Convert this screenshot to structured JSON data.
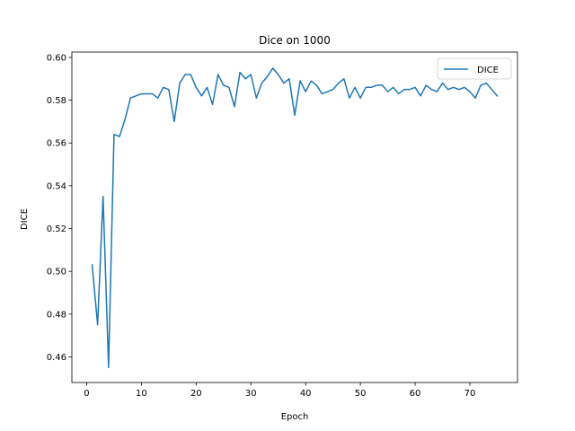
{
  "chart_data": {
    "type": "line",
    "title": "Dice on 1000",
    "xlabel": "Epoch",
    "ylabel": "DICE",
    "xlim": [
      -2.7,
      78.7
    ],
    "ylim": [
      0.448,
      0.6025
    ],
    "xticks": [
      0,
      10,
      20,
      30,
      40,
      50,
      60,
      70
    ],
    "yticks": [
      0.46,
      0.48,
      0.5,
      0.52,
      0.54,
      0.56,
      0.58,
      0.6
    ],
    "grid": false,
    "legend_position": "top-right",
    "series": [
      {
        "name": "DICE",
        "color": "#1f77b4",
        "x": [
          1,
          2,
          3,
          4,
          5,
          6,
          7,
          8,
          9,
          10,
          11,
          12,
          13,
          14,
          15,
          16,
          17,
          18,
          19,
          20,
          21,
          22,
          23,
          24,
          25,
          26,
          27,
          28,
          29,
          30,
          31,
          32,
          33,
          34,
          35,
          36,
          37,
          38,
          39,
          40,
          41,
          42,
          43,
          44,
          45,
          46,
          47,
          48,
          49,
          50,
          51,
          52,
          53,
          54,
          55,
          56,
          57,
          58,
          59,
          60,
          61,
          62,
          63,
          64,
          65,
          66,
          67,
          68,
          69,
          70,
          71,
          72,
          73,
          74,
          75
        ],
        "y": [
          0.503,
          0.475,
          0.535,
          0.455,
          0.564,
          0.563,
          0.571,
          0.581,
          0.582,
          0.583,
          0.583,
          0.583,
          0.581,
          0.586,
          0.585,
          0.57,
          0.588,
          0.592,
          0.592,
          0.586,
          0.582,
          0.586,
          0.578,
          0.592,
          0.587,
          0.586,
          0.577,
          0.593,
          0.59,
          0.592,
          0.581,
          0.588,
          0.591,
          0.595,
          0.592,
          0.588,
          0.59,
          0.573,
          0.589,
          0.584,
          0.589,
          0.587,
          0.583,
          0.584,
          0.585,
          0.588,
          0.59,
          0.581,
          0.586,
          0.581,
          0.586,
          0.586,
          0.587,
          0.587,
          0.584,
          0.586,
          0.583,
          0.585,
          0.585,
          0.586,
          0.582,
          0.587,
          0.585,
          0.584,
          0.588,
          0.585,
          0.586,
          0.585,
          0.586,
          0.584,
          0.581,
          0.587,
          0.588,
          0.585,
          0.582
        ]
      }
    ]
  }
}
